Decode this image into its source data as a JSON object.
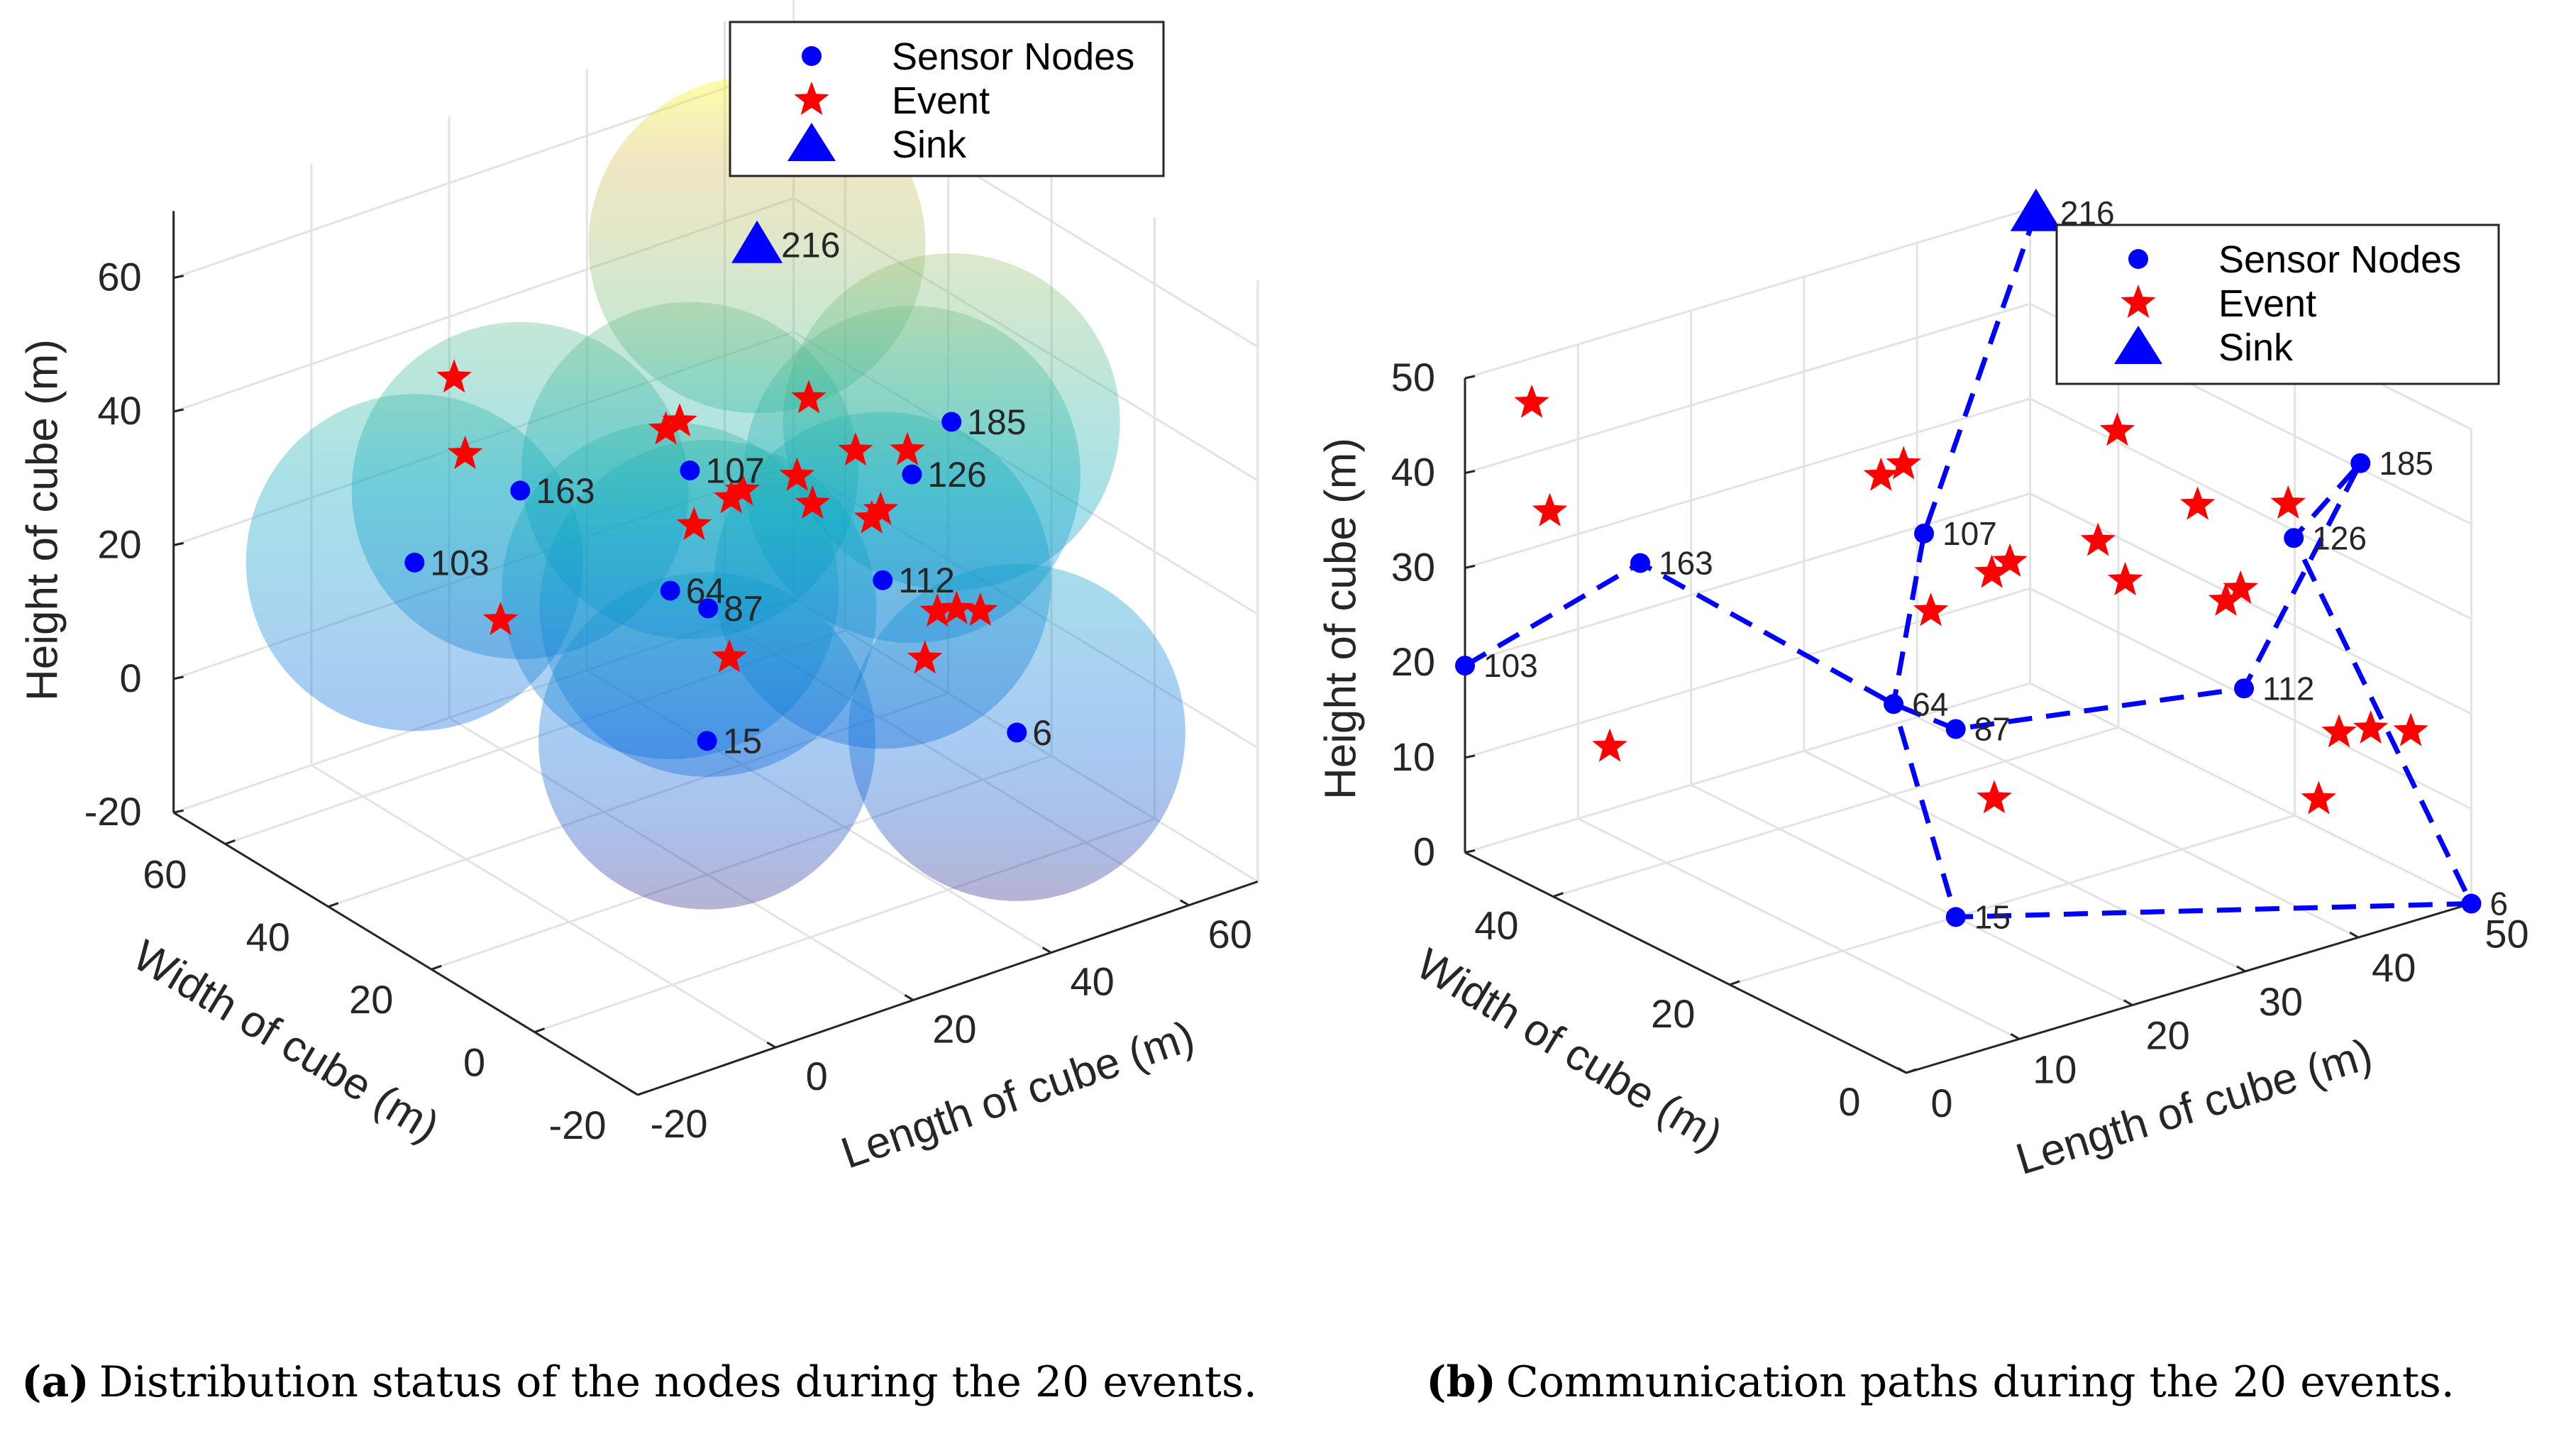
{
  "chart_data": [
    {
      "panel": "a",
      "type": "scatter3d",
      "caption_label": "(a)",
      "caption": "Distribution status of the nodes during the 20 events.",
      "xlabel": "Length of cube (m)",
      "ylabel": "Width of cube (m)",
      "zlabel": "Height of cube (m)",
      "xlim": [
        -20,
        70
      ],
      "ylim": [
        -20,
        70
      ],
      "zlim": [
        -20,
        70
      ],
      "xticks": [
        -20,
        0,
        20,
        40,
        60
      ],
      "yticks": [
        -20,
        0,
        20,
        40,
        60
      ],
      "zticks": [
        -20,
        0,
        20,
        40,
        60
      ],
      "grid": true,
      "legend": {
        "placement": "top-right",
        "entries": [
          "Sensor Nodes",
          "Event",
          "Sink"
        ]
      },
      "communication_spheres": true,
      "sphere_radius": 25,
      "colormap": "parula",
      "nodes": [
        {
          "id": "6",
          "x": 50,
          "y": 0,
          "z": 0
        },
        {
          "id": "15",
          "x": 20,
          "y": 20,
          "z": 0
        },
        {
          "id": "64",
          "x": 18.4,
          "y": 25,
          "z": 20.7
        },
        {
          "id": "87",
          "x": 23.9,
          "y": 25,
          "z": 16.1
        },
        {
          "id": "103",
          "x": 0,
          "y": 50,
          "z": 19.7
        },
        {
          "id": "107",
          "x": 25,
          "y": 30,
          "z": 34
        },
        {
          "id": "112",
          "x": 45.5,
          "y": 20,
          "z": 15
        },
        {
          "id": "126",
          "x": 46,
          "y": 15,
          "z": 33
        },
        {
          "id": "163",
          "x": 11.6,
          "y": 45,
          "z": 28.7
        },
        {
          "id": "185",
          "x": 48,
          "y": 10,
          "z": 42.5
        }
      ],
      "sink": {
        "id": "216",
        "x": 31,
        "y": 25,
        "z": 68
      },
      "events": [
        [
          2,
          45,
          49
        ],
        [
          3.6,
          45,
          37
        ],
        [
          5,
          40,
          14
        ],
        [
          29,
          40,
          34
        ],
        [
          31,
          40,
          34.5
        ],
        [
          25.6,
          30,
          25.6
        ],
        [
          31,
          30,
          27.7
        ],
        [
          32.6,
          30,
          28.3
        ],
        [
          19.5,
          15,
          15
        ],
        [
          46,
          35,
          35
        ],
        [
          44.3,
          35,
          24
        ],
        [
          42.8,
          30,
          22.7
        ],
        [
          45.3,
          25,
          32.1
        ],
        [
          43.9,
          20,
          24.8
        ],
        [
          45.2,
          20,
          25.6
        ],
        [
          41.6,
          10,
          40.5
        ],
        [
          42.2,
          5,
          18.5
        ],
        [
          45,
          5,
          17.9
        ],
        [
          46.2,
          2,
          18.6
        ],
        [
          40.4,
          5,
          12.1
        ]
      ]
    },
    {
      "panel": "b",
      "type": "scatter3d",
      "caption_label": "(b)",
      "caption": "Communication paths during the 20 events.",
      "xlabel": "Length of cube (m)",
      "ylabel": "Width of cube (m)",
      "zlabel": "Height of cube (m)",
      "xlim": [
        0,
        50
      ],
      "ylim": [
        0,
        50
      ],
      "zlim": [
        0,
        50
      ],
      "xticks": [
        0,
        10,
        20,
        30,
        40,
        50
      ],
      "yticks": [
        0,
        20,
        40
      ],
      "zticks": [
        0,
        10,
        20,
        30,
        40,
        50
      ],
      "grid": true,
      "legend": {
        "placement": "top-right",
        "entries": [
          "Sensor Nodes",
          "Event",
          "Sink"
        ]
      },
      "nodes": [
        {
          "id": "6",
          "x": 50,
          "y": 0,
          "z": 0
        },
        {
          "id": "15",
          "x": 20,
          "y": 20,
          "z": 0
        },
        {
          "id": "64",
          "x": 18.4,
          "y": 25,
          "z": 20.7
        },
        {
          "id": "87",
          "x": 23.9,
          "y": 25,
          "z": 16.1
        },
        {
          "id": "103",
          "x": 0,
          "y": 50,
          "z": 19.7
        },
        {
          "id": "107",
          "x": 25,
          "y": 30,
          "z": 34
        },
        {
          "id": "112",
          "x": 45.5,
          "y": 20,
          "z": 15
        },
        {
          "id": "126",
          "x": 46,
          "y": 15,
          "z": 33
        },
        {
          "id": "163",
          "x": 11.6,
          "y": 45,
          "z": 28.7
        },
        {
          "id": "185",
          "x": 48,
          "y": 10,
          "z": 42.5
        }
      ],
      "sink": {
        "id": "216",
        "x": 31,
        "y": 25,
        "z": 68
      },
      "paths": [
        [
          "103",
          "163",
          "64",
          "87",
          "112",
          "185"
        ],
        [
          "216",
          "107",
          "64",
          "15",
          "6",
          "126",
          "185"
        ]
      ],
      "events": [
        [
          2,
          45,
          49
        ],
        [
          3.6,
          45,
          37
        ],
        [
          5,
          40,
          14
        ],
        [
          29,
          40,
          34
        ],
        [
          31,
          40,
          34.5
        ],
        [
          25.6,
          30,
          25.6
        ],
        [
          31,
          30,
          27.7
        ],
        [
          32.6,
          30,
          28.3
        ],
        [
          19.5,
          15,
          15
        ],
        [
          46,
          35,
          35
        ],
        [
          44.3,
          35,
          24
        ],
        [
          42.8,
          30,
          22.7
        ],
        [
          45.3,
          25,
          32.1
        ],
        [
          43.9,
          20,
          24.8
        ],
        [
          45.2,
          20,
          25.6
        ],
        [
          41.6,
          10,
          40.5
        ],
        [
          42.2,
          5,
          18.5
        ],
        [
          45,
          5,
          17.9
        ],
        [
          46.2,
          2,
          18.6
        ],
        [
          40.4,
          5,
          12.1
        ]
      ]
    }
  ],
  "colors": {
    "node": "#0000ff",
    "event": "#ff0000",
    "sink": "#0000ff",
    "path": "#0000ff",
    "grid": "#e3e3e3",
    "axis": "#262626"
  }
}
